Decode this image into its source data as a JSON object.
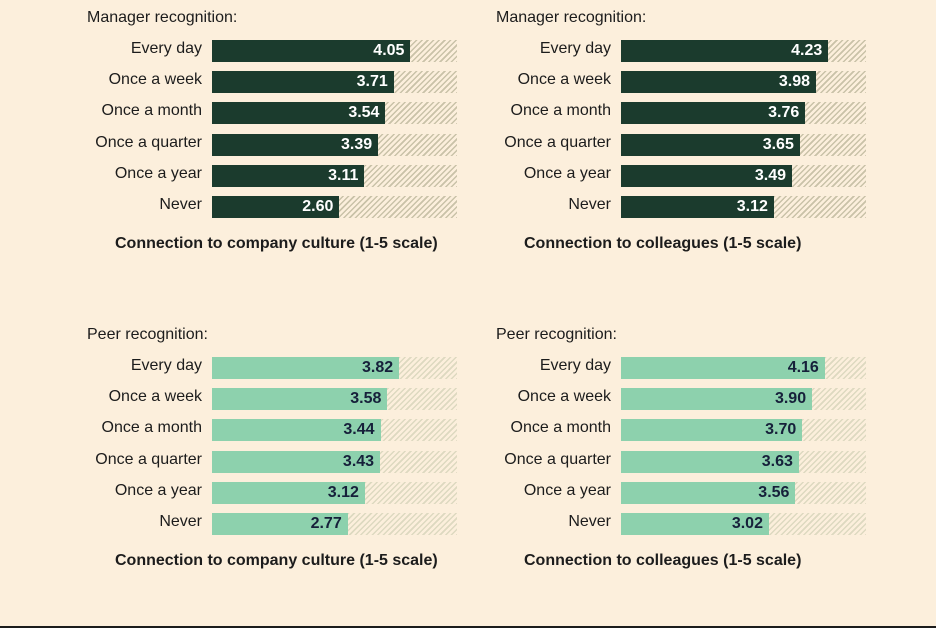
{
  "colors": {
    "manager": "#1b3b2d",
    "peer": "#8dd1ad",
    "manager_text": "#ffffff",
    "peer_text": "#16203a",
    "background": "#fcefdc"
  },
  "chart_data": [
    {
      "type": "bar",
      "orientation": "horizontal",
      "title": "Manager recognition:",
      "xlabel": "Connection to company culture (1-5 scale)",
      "xlim": [
        0,
        5
      ],
      "categories": [
        "Every day",
        "Once a week",
        "Once a month",
        "Once a quarter",
        "Once a year",
        "Never"
      ],
      "values": [
        4.05,
        3.71,
        3.54,
        3.39,
        3.11,
        2.6
      ],
      "color": "manager"
    },
    {
      "type": "bar",
      "orientation": "horizontal",
      "title": "Manager recognition:",
      "xlabel": "Connection to colleagues (1-5 scale)",
      "xlim": [
        0,
        5
      ],
      "categories": [
        "Every day",
        "Once a week",
        "Once a month",
        "Once a quarter",
        "Once a year",
        "Never"
      ],
      "values": [
        4.23,
        3.98,
        3.76,
        3.65,
        3.49,
        3.12
      ],
      "color": "manager"
    },
    {
      "type": "bar",
      "orientation": "horizontal",
      "title": "Peer recognition:",
      "xlabel": "Connection to company culture (1-5 scale)",
      "xlim": [
        0,
        5
      ],
      "categories": [
        "Every day",
        "Once a week",
        "Once a month",
        "Once a quarter",
        "Once a year",
        "Never"
      ],
      "values": [
        3.82,
        3.58,
        3.44,
        3.43,
        3.12,
        2.77
      ],
      "color": "peer"
    },
    {
      "type": "bar",
      "orientation": "horizontal",
      "title": "Peer recognition:",
      "xlabel": "Connection to colleagues (1-5 scale)",
      "xlim": [
        0,
        5
      ],
      "categories": [
        "Every day",
        "Once a week",
        "Once a month",
        "Once a quarter",
        "Once a year",
        "Never"
      ],
      "values": [
        4.16,
        3.9,
        3.7,
        3.63,
        3.56,
        3.02
      ],
      "color": "peer"
    }
  ]
}
